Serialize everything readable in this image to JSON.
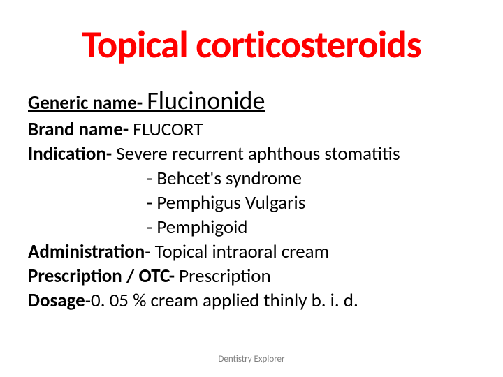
{
  "title": "Topical corticosteroids",
  "generic": {
    "label": "Generic name- ",
    "value": "Flucinonide"
  },
  "brand": {
    "label": "Brand name- ",
    "value": "FLUCORT"
  },
  "indication": {
    "label": "Indication- ",
    "value": "Severe recurrent aphthous stomatitis"
  },
  "indications": [
    "- Behcet's syndrome",
    "- Pemphigus Vulgaris",
    "- Pemphigoid"
  ],
  "administration": {
    "label": "Administration",
    "value": "- Topical intraoral cream"
  },
  "prescription": {
    "label": "Prescription / OTC- ",
    "value": "Prescription"
  },
  "dosage": {
    "label": "Dosage",
    "value": "-0. 05 % cream applied thinly b. i. d."
  },
  "footer": "Dentistry Explorer",
  "colors": {
    "title": "#ff0000",
    "text": "#000000",
    "footer": "#808080",
    "background": "#ffffff",
    "underline": "#000000"
  },
  "typography": {
    "title_fontsize": 55,
    "body_fontsize": 27,
    "generic_value_fontsize": 36,
    "footer_fontsize": 13,
    "font_family": "Calibri"
  }
}
